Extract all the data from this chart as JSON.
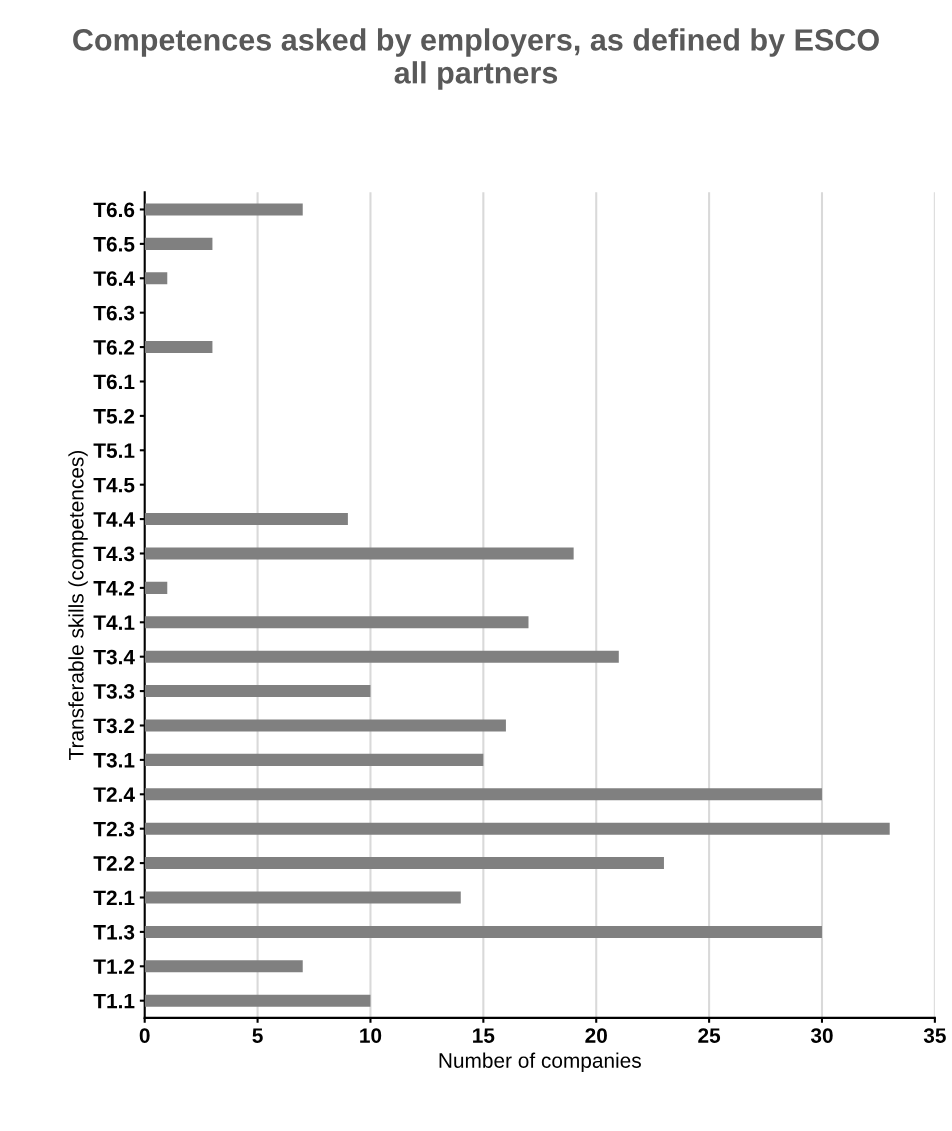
{
  "chart_data": {
    "type": "bar",
    "orientation": "horizontal",
    "title": "Competences asked by employers, as defined by ESCO\nall partners",
    "xlabel": "Number of companies",
    "ylabel": "Transferable skills (competences)",
    "categories": [
      "T6.6",
      "T6.5",
      "T6.4",
      "T6.3",
      "T6.2",
      "T6.1",
      "T5.2",
      "T5.1",
      "T4.5",
      "T4.4",
      "T4.3",
      "T4.2",
      "T4.1",
      "T3.4",
      "T3.3",
      "T3.2",
      "T3.1",
      "T2.4",
      "T2.3",
      "T2.2",
      "T2.1",
      "T1.3",
      "T1.2",
      "T1.1"
    ],
    "values": [
      7,
      3,
      1,
      0,
      3,
      0,
      0,
      0,
      0,
      9,
      19,
      1,
      17,
      21,
      10,
      16,
      15,
      30,
      33,
      23,
      14,
      30,
      7,
      10
    ],
    "color": "#808080",
    "xlim": [
      0,
      35
    ],
    "xticks": [
      0,
      5,
      10,
      15,
      20,
      25,
      30,
      35
    ],
    "grid": "x",
    "legend": false
  }
}
